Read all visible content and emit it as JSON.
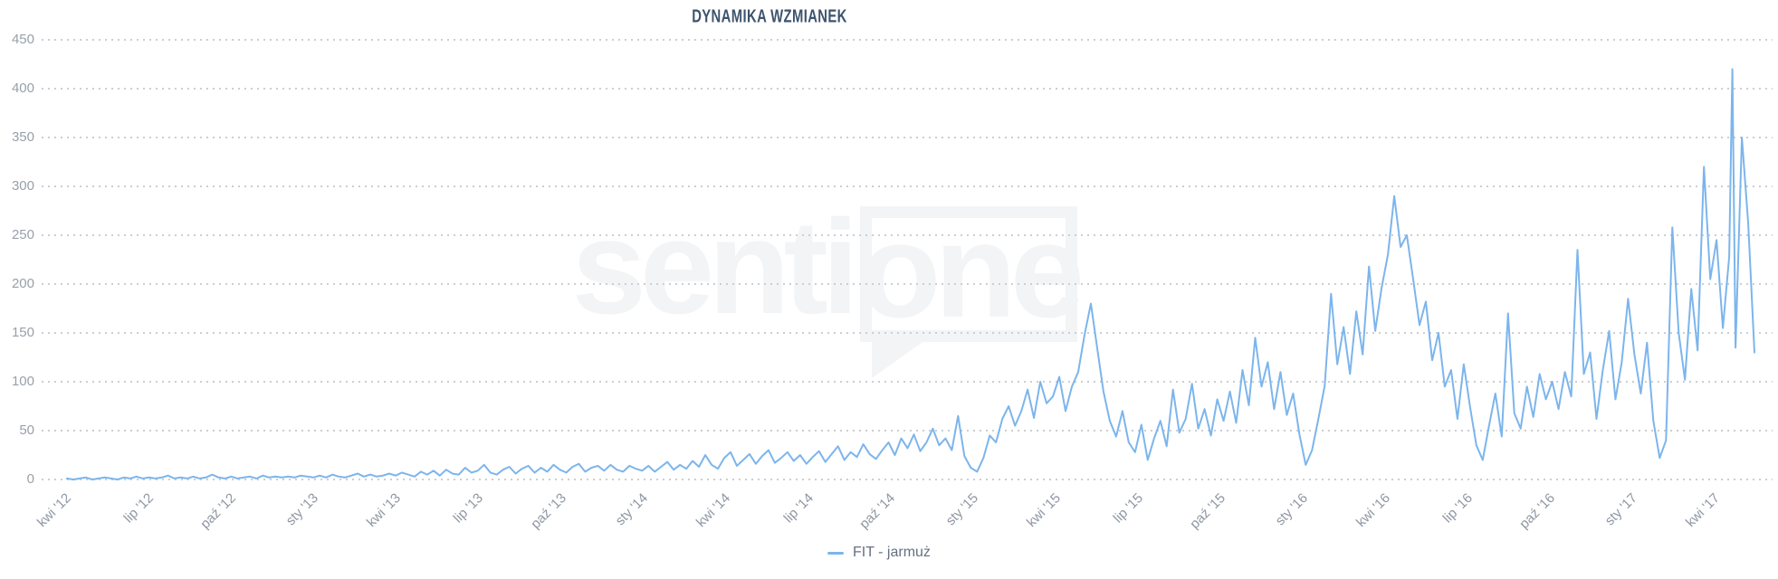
{
  "title": "DYNAMIKA WZMIANEK",
  "watermark": {
    "text_left": "senti",
    "text_boxed": "one"
  },
  "legend": {
    "series_label": "FIT - jarmuż"
  },
  "colors": {
    "series": "#7cb5ec",
    "grid_dots": "#cbced3",
    "axis_labels": "#98a0ab",
    "title": "#3e536d",
    "legend_text": "#677080",
    "watermark": "#f3f4f6",
    "background": "#ffffff"
  },
  "chart_data": {
    "type": "line",
    "title": "DYNAMIKA WZMIANEK",
    "series_name": "FIT - jarmuż",
    "x_unit": "weeks since kwi '12 (April 2012), data through May 2017",
    "y_axis": {
      "min": 0,
      "max": 450,
      "step": 50
    },
    "y_ticks": [
      0,
      50,
      100,
      150,
      200,
      250,
      300,
      350,
      400,
      450
    ],
    "grid": "horizontal dotted",
    "legend_position": "bottom-center",
    "x_axis": {
      "ticks": [
        {
          "label": "kwi '12",
          "week": 0
        },
        {
          "label": "lip '12",
          "week": 13
        },
        {
          "label": "paź '12",
          "week": 26.1
        },
        {
          "label": "sty '13",
          "week": 39.1
        },
        {
          "label": "kwi '13",
          "week": 52.2
        },
        {
          "label": "lip '13",
          "week": 65.2
        },
        {
          "label": "paź '13",
          "week": 78.3
        },
        {
          "label": "sty '14",
          "week": 91.3
        },
        {
          "label": "kwi '14",
          "week": 104.3
        },
        {
          "label": "lip '14",
          "week": 117.4
        },
        {
          "label": "paź '14",
          "week": 130.4
        },
        {
          "label": "sty '15",
          "week": 143.5
        },
        {
          "label": "kwi '15",
          "week": 156.5
        },
        {
          "label": "lip '15",
          "week": 169.6
        },
        {
          "label": "paź '15",
          "week": 182.6
        },
        {
          "label": "sty '16",
          "week": 195.7
        },
        {
          "label": "kwi '16",
          "week": 208.7
        },
        {
          "label": "lip '16",
          "week": 221.7
        },
        {
          "label": "paź '16",
          "week": 234.8
        },
        {
          "label": "sty '17",
          "week": 247.8
        },
        {
          "label": "kwi '17",
          "week": 260.9
        }
      ]
    },
    "points": [
      [
        0,
        1
      ],
      [
        1,
        0
      ],
      [
        2,
        1
      ],
      [
        3,
        2
      ],
      [
        4,
        0
      ],
      [
        5,
        1
      ],
      [
        6,
        2
      ],
      [
        7,
        1
      ],
      [
        8,
        0
      ],
      [
        9,
        2
      ],
      [
        10,
        1
      ],
      [
        11,
        3
      ],
      [
        12,
        1
      ],
      [
        13,
        2
      ],
      [
        14,
        1
      ],
      [
        15,
        2
      ],
      [
        16,
        4
      ],
      [
        17,
        1
      ],
      [
        18,
        2
      ],
      [
        19,
        1
      ],
      [
        20,
        3
      ],
      [
        21,
        1
      ],
      [
        22,
        2
      ],
      [
        23,
        5
      ],
      [
        24,
        2
      ],
      [
        25,
        1
      ],
      [
        26,
        3
      ],
      [
        27,
        1
      ],
      [
        28,
        2
      ],
      [
        29,
        3
      ],
      [
        30,
        1
      ],
      [
        31,
        4
      ],
      [
        32,
        2
      ],
      [
        33,
        3
      ],
      [
        34,
        2
      ],
      [
        35,
        3
      ],
      [
        36,
        2
      ],
      [
        37,
        4
      ],
      [
        38,
        3
      ],
      [
        39,
        2
      ],
      [
        40,
        4
      ],
      [
        41,
        2
      ],
      [
        42,
        5
      ],
      [
        43,
        3
      ],
      [
        44,
        2
      ],
      [
        45,
        4
      ],
      [
        46,
        6
      ],
      [
        47,
        3
      ],
      [
        48,
        5
      ],
      [
        49,
        3
      ],
      [
        50,
        4
      ],
      [
        51,
        6
      ],
      [
        52,
        4
      ],
      [
        53,
        7
      ],
      [
        54,
        5
      ],
      [
        55,
        3
      ],
      [
        56,
        8
      ],
      [
        57,
        5
      ],
      [
        58,
        9
      ],
      [
        59,
        4
      ],
      [
        60,
        10
      ],
      [
        61,
        6
      ],
      [
        62,
        5
      ],
      [
        63,
        12
      ],
      [
        64,
        7
      ],
      [
        65,
        9
      ],
      [
        66,
        15
      ],
      [
        67,
        7
      ],
      [
        68,
        5
      ],
      [
        69,
        10
      ],
      [
        70,
        13
      ],
      [
        71,
        6
      ],
      [
        72,
        11
      ],
      [
        73,
        14
      ],
      [
        74,
        7
      ],
      [
        75,
        12
      ],
      [
        76,
        8
      ],
      [
        77,
        15
      ],
      [
        78,
        10
      ],
      [
        79,
        7
      ],
      [
        80,
        13
      ],
      [
        81,
        16
      ],
      [
        82,
        8
      ],
      [
        83,
        12
      ],
      [
        84,
        14
      ],
      [
        85,
        9
      ],
      [
        86,
        15
      ],
      [
        87,
        10
      ],
      [
        88,
        8
      ],
      [
        89,
        14
      ],
      [
        90,
        11
      ],
      [
        91,
        9
      ],
      [
        92,
        14
      ],
      [
        93,
        8
      ],
      [
        94,
        13
      ],
      [
        95,
        18
      ],
      [
        96,
        10
      ],
      [
        97,
        15
      ],
      [
        98,
        11
      ],
      [
        99,
        19
      ],
      [
        100,
        13
      ],
      [
        101,
        25
      ],
      [
        102,
        15
      ],
      [
        103,
        11
      ],
      [
        104,
        22
      ],
      [
        105,
        28
      ],
      [
        106,
        14
      ],
      [
        107,
        20
      ],
      [
        108,
        26
      ],
      [
        109,
        16
      ],
      [
        110,
        24
      ],
      [
        111,
        30
      ],
      [
        112,
        17
      ],
      [
        113,
        22
      ],
      [
        114,
        28
      ],
      [
        115,
        19
      ],
      [
        116,
        25
      ],
      [
        117,
        16
      ],
      [
        118,
        23
      ],
      [
        119,
        29
      ],
      [
        120,
        18
      ],
      [
        121,
        26
      ],
      [
        122,
        34
      ],
      [
        123,
        20
      ],
      [
        124,
        28
      ],
      [
        125,
        23
      ],
      [
        126,
        36
      ],
      [
        127,
        26
      ],
      [
        128,
        21
      ],
      [
        129,
        30
      ],
      [
        130,
        38
      ],
      [
        131,
        25
      ],
      [
        132,
        42
      ],
      [
        133,
        32
      ],
      [
        134,
        46
      ],
      [
        135,
        29
      ],
      [
        136,
        38
      ],
      [
        137,
        52
      ],
      [
        138,
        35
      ],
      [
        139,
        42
      ],
      [
        140,
        30
      ],
      [
        141,
        65
      ],
      [
        142,
        24
      ],
      [
        143,
        12
      ],
      [
        144,
        8
      ],
      [
        145,
        22
      ],
      [
        146,
        45
      ],
      [
        147,
        38
      ],
      [
        148,
        62
      ],
      [
        149,
        75
      ],
      [
        150,
        55
      ],
      [
        151,
        70
      ],
      [
        152,
        92
      ],
      [
        153,
        63
      ],
      [
        154,
        100
      ],
      [
        155,
        78
      ],
      [
        156,
        85
      ],
      [
        157,
        105
      ],
      [
        158,
        70
      ],
      [
        159,
        95
      ],
      [
        160,
        110
      ],
      [
        161,
        148
      ],
      [
        162,
        180
      ],
      [
        163,
        135
      ],
      [
        164,
        90
      ],
      [
        165,
        60
      ],
      [
        166,
        44
      ],
      [
        167,
        70
      ],
      [
        168,
        38
      ],
      [
        169,
        28
      ],
      [
        170,
        56
      ],
      [
        171,
        20
      ],
      [
        172,
        42
      ],
      [
        173,
        60
      ],
      [
        174,
        34
      ],
      [
        175,
        92
      ],
      [
        176,
        48
      ],
      [
        177,
        62
      ],
      [
        178,
        98
      ],
      [
        179,
        52
      ],
      [
        180,
        72
      ],
      [
        181,
        45
      ],
      [
        182,
        82
      ],
      [
        183,
        60
      ],
      [
        184,
        90
      ],
      [
        185,
        58
      ],
      [
        186,
        112
      ],
      [
        187,
        76
      ],
      [
        188,
        145
      ],
      [
        189,
        95
      ],
      [
        190,
        120
      ],
      [
        191,
        72
      ],
      [
        192,
        110
      ],
      [
        193,
        66
      ],
      [
        194,
        88
      ],
      [
        195,
        46
      ],
      [
        196,
        15
      ],
      [
        197,
        30
      ],
      [
        198,
        62
      ],
      [
        199,
        96
      ],
      [
        200,
        190
      ],
      [
        201,
        118
      ],
      [
        202,
        156
      ],
      [
        203,
        108
      ],
      [
        204,
        172
      ],
      [
        205,
        128
      ],
      [
        206,
        218
      ],
      [
        207,
        152
      ],
      [
        208,
        196
      ],
      [
        209,
        230
      ],
      [
        210,
        290
      ],
      [
        211,
        238
      ],
      [
        212,
        250
      ],
      [
        213,
        205
      ],
      [
        214,
        158
      ],
      [
        215,
        182
      ],
      [
        216,
        122
      ],
      [
        217,
        150
      ],
      [
        218,
        95
      ],
      [
        219,
        112
      ],
      [
        220,
        62
      ],
      [
        221,
        118
      ],
      [
        222,
        74
      ],
      [
        223,
        35
      ],
      [
        224,
        20
      ],
      [
        225,
        55
      ],
      [
        226,
        88
      ],
      [
        227,
        44
      ],
      [
        228,
        170
      ],
      [
        229,
        68
      ],
      [
        230,
        52
      ],
      [
        231,
        95
      ],
      [
        232,
        64
      ],
      [
        233,
        108
      ],
      [
        234,
        82
      ],
      [
        235,
        100
      ],
      [
        236,
        72
      ],
      [
        237,
        110
      ],
      [
        238,
        85
      ],
      [
        239,
        235
      ],
      [
        240,
        108
      ],
      [
        241,
        130
      ],
      [
        242,
        62
      ],
      [
        243,
        112
      ],
      [
        244,
        152
      ],
      [
        245,
        82
      ],
      [
        246,
        120
      ],
      [
        247,
        185
      ],
      [
        248,
        128
      ],
      [
        249,
        88
      ],
      [
        250,
        140
      ],
      [
        251,
        60
      ],
      [
        252,
        22
      ],
      [
        253,
        40
      ],
      [
        254,
        258
      ],
      [
        255,
        150
      ],
      [
        256,
        102
      ],
      [
        257,
        195
      ],
      [
        258,
        132
      ],
      [
        259,
        320
      ],
      [
        260,
        205
      ],
      [
        261,
        245
      ],
      [
        262,
        155
      ],
      [
        263,
        228
      ],
      [
        263.5,
        420
      ],
      [
        264,
        135
      ],
      [
        265,
        350
      ],
      [
        266,
        262
      ],
      [
        267,
        130
      ]
    ]
  }
}
